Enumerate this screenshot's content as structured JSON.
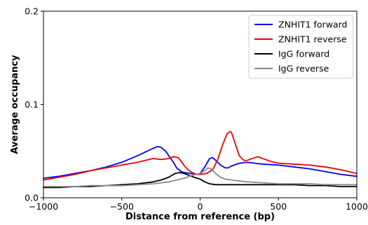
{
  "chart_data": {
    "type": "line",
    "title": "",
    "xlabel": "Distance from reference (bp)",
    "ylabel": "Average occupancy",
    "xlim": [
      -1000,
      1000
    ],
    "ylim": [
      0,
      0.2
    ],
    "xticks": [
      -1000,
      -500,
      0,
      500,
      1000
    ],
    "xtick_labels": [
      "−1000",
      "−500",
      "0",
      "500",
      "1000"
    ],
    "yticks": [
      0,
      0.1,
      0.2
    ],
    "ytick_labels": [
      "0.0",
      "0.1",
      "0.2"
    ],
    "grid": false,
    "legend_position": "top-right",
    "series": [
      {
        "name": "ZNHIT1 forward",
        "color": "#0000ee",
        "x": [
          -1000,
          -900,
          -800,
          -700,
          -600,
          -500,
          -400,
          -350,
          -300,
          -270,
          -250,
          -220,
          -200,
          -170,
          -150,
          -120,
          -100,
          -60,
          -20,
          0,
          30,
          60,
          80,
          100,
          130,
          160,
          180,
          200,
          250,
          300,
          350,
          400,
          500,
          600,
          700,
          800,
          900,
          1000
        ],
        "y": [
          0.021,
          0.023,
          0.026,
          0.029,
          0.033,
          0.038,
          0.045,
          0.049,
          0.053,
          0.055,
          0.054,
          0.05,
          0.045,
          0.038,
          0.032,
          0.028,
          0.027,
          0.026,
          0.025,
          0.026,
          0.033,
          0.042,
          0.043,
          0.04,
          0.035,
          0.032,
          0.032,
          0.034,
          0.037,
          0.038,
          0.037,
          0.036,
          0.035,
          0.033,
          0.031,
          0.028,
          0.025,
          0.023
        ]
      },
      {
        "name": "ZNHIT1 reverse",
        "color": "#ee0000",
        "x": [
          -1000,
          -900,
          -800,
          -700,
          -600,
          -500,
          -400,
          -300,
          -250,
          -200,
          -170,
          -140,
          -120,
          -100,
          -70,
          -40,
          -20,
          0,
          40,
          80,
          110,
          140,
          170,
          190,
          200,
          220,
          250,
          280,
          300,
          330,
          370,
          400,
          450,
          500,
          600,
          700,
          800,
          900,
          1000
        ],
        "y": [
          0.019,
          0.022,
          0.025,
          0.029,
          0.032,
          0.035,
          0.038,
          0.042,
          0.041,
          0.042,
          0.044,
          0.043,
          0.039,
          0.034,
          0.029,
          0.026,
          0.025,
          0.025,
          0.026,
          0.03,
          0.04,
          0.055,
          0.068,
          0.071,
          0.07,
          0.06,
          0.045,
          0.04,
          0.04,
          0.042,
          0.044,
          0.042,
          0.039,
          0.037,
          0.036,
          0.035,
          0.033,
          0.03,
          0.026
        ]
      },
      {
        "name": "IgG forward",
        "color": "#000000",
        "x": [
          -1000,
          -900,
          -800,
          -700,
          -600,
          -500,
          -400,
          -300,
          -250,
          -200,
          -160,
          -130,
          -100,
          -70,
          -40,
          0,
          30,
          60,
          100,
          150,
          200,
          300,
          400,
          500,
          600,
          700,
          800,
          900,
          1000
        ],
        "y": [
          0.011,
          0.011,
          0.012,
          0.012,
          0.013,
          0.014,
          0.015,
          0.017,
          0.019,
          0.022,
          0.026,
          0.027,
          0.026,
          0.024,
          0.022,
          0.02,
          0.017,
          0.015,
          0.014,
          0.014,
          0.014,
          0.014,
          0.014,
          0.014,
          0.014,
          0.013,
          0.013,
          0.012,
          0.012
        ]
      },
      {
        "name": "IgG reverse",
        "color": "#888888",
        "x": [
          -1000,
          -900,
          -800,
          -700,
          -600,
          -500,
          -400,
          -300,
          -200,
          -100,
          -50,
          0,
          30,
          50,
          70,
          100,
          130,
          160,
          200,
          300,
          400,
          500,
          600,
          700,
          800,
          900,
          1000
        ],
        "y": [
          0.012,
          0.012,
          0.012,
          0.013,
          0.013,
          0.013,
          0.014,
          0.015,
          0.017,
          0.021,
          0.024,
          0.026,
          0.029,
          0.032,
          0.031,
          0.026,
          0.022,
          0.02,
          0.019,
          0.017,
          0.016,
          0.015,
          0.015,
          0.015,
          0.014,
          0.014,
          0.014
        ]
      }
    ]
  }
}
